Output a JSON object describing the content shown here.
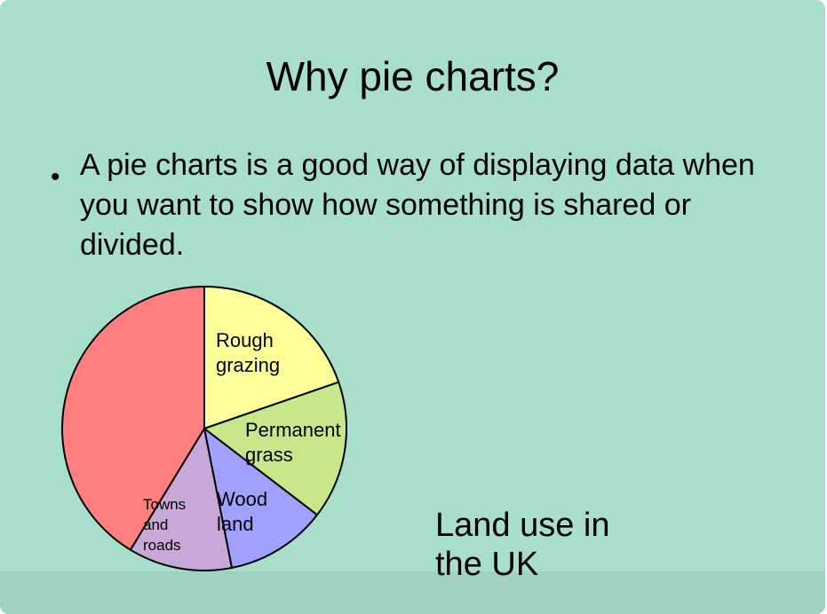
{
  "slide": {
    "title": "Why pie charts?",
    "bullet": "A pie charts is a good way of displaying data when you want to show how something is shared or divided.",
    "caption_line1": "Land use in",
    "caption_line2": "the UK"
  },
  "chart_data": {
    "type": "pie",
    "title": "",
    "slices": [
      {
        "label": "Rough grazing",
        "label_lines": [
          "Rough",
          "grazing"
        ],
        "percent": 19.7,
        "color": "#ffff99"
      },
      {
        "label": "Permanent grass",
        "label_lines": [
          "Permanent",
          "grass"
        ],
        "percent": 15.7,
        "color": "#c8e68a"
      },
      {
        "label": "Wood land",
        "label_lines": [
          "Wood",
          "land"
        ],
        "percent": 11.5,
        "color": "#a0a0ff"
      },
      {
        "label": "Towns and roads",
        "label_lines": [
          "Towns",
          "and",
          "roads"
        ],
        "percent": 11.8,
        "color": "#c8a8d8"
      },
      {
        "label": "",
        "label_lines": [],
        "percent": 41.3,
        "color": "#ff7f7f"
      }
    ],
    "start_angle_deg": 0,
    "direction": "clockwise"
  }
}
